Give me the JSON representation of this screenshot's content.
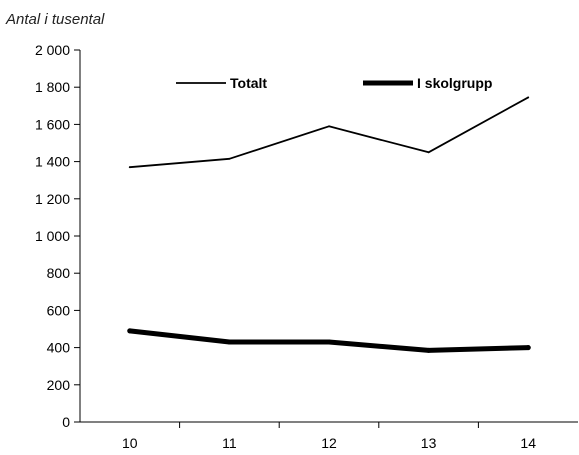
{
  "chart_data": {
    "type": "line",
    "unit_label": "Antal i tusental",
    "categories": [
      "10",
      "11",
      "12",
      "13",
      "14"
    ],
    "ylim": [
      0,
      2000
    ],
    "y_ticks": [
      0,
      200,
      400,
      600,
      800,
      1000,
      1200,
      1400,
      1600,
      1800,
      2000
    ],
    "y_tick_labels": [
      "0",
      "200",
      "400",
      "600",
      "800",
      "1 000",
      "1 200",
      "1 400",
      "1 600",
      "1 800",
      "2 000"
    ],
    "grid": false,
    "legend_position": "top",
    "series": [
      {
        "name": "Totalt",
        "values": [
          1370,
          1415,
          1590,
          1450,
          1745
        ],
        "color": "#000000",
        "line_weight": "thin"
      },
      {
        "name": "I skolgrupp",
        "values": [
          490,
          430,
          430,
          385,
          400
        ],
        "color": "#000000",
        "line_weight": "thick"
      }
    ]
  }
}
